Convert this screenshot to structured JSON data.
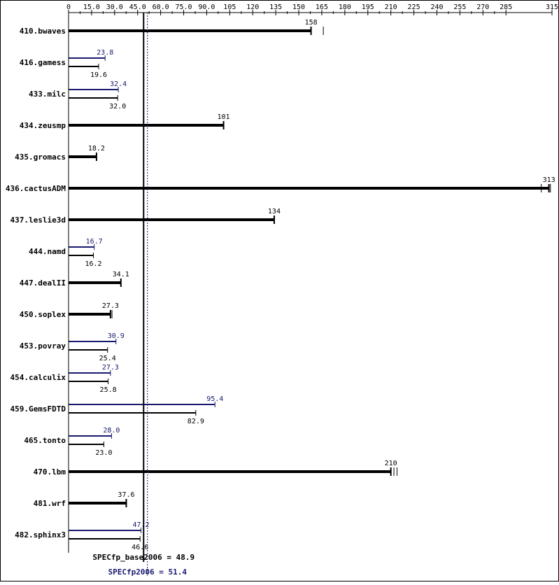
{
  "chart_data": {
    "type": "bar",
    "title": "",
    "xlabel": "",
    "ylabel": "",
    "xlim": [
      0,
      315
    ],
    "x_ticks": [
      "0",
      "15.0",
      "30.0",
      "45.0",
      "60.0",
      "75.0",
      "90.0",
      "105",
      "120",
      "135",
      "150",
      "165",
      "180",
      "195",
      "210",
      "225",
      "240",
      "255",
      "270",
      "285",
      "315"
    ],
    "x_tick_values": [
      0,
      15,
      30,
      45,
      60,
      75,
      90,
      105,
      120,
      135,
      150,
      165,
      180,
      195,
      210,
      225,
      240,
      255,
      270,
      285,
      315
    ],
    "benchmarks": [
      {
        "name": "410.bwaves",
        "base": 158,
        "base_label": "158",
        "peak": null,
        "peak_label": null,
        "runs": [
          158,
          166
        ]
      },
      {
        "name": "416.gamess",
        "base": 19.6,
        "base_label": "19.6",
        "peak": 23.8,
        "peak_label": "23.8",
        "runs": []
      },
      {
        "name": "433.milc",
        "base": 32.0,
        "base_label": "32.0",
        "peak": 32.4,
        "peak_label": "32.4",
        "runs": []
      },
      {
        "name": "434.zeusmp",
        "base": 101,
        "base_label": "101",
        "peak": null,
        "peak_label": null,
        "runs": []
      },
      {
        "name": "435.gromacs",
        "base": 18.2,
        "base_label": "18.2",
        "peak": null,
        "peak_label": null,
        "runs": []
      },
      {
        "name": "436.cactusADM",
        "base": 313,
        "base_label": "313",
        "peak": null,
        "peak_label": null,
        "runs": [
          308,
          314
        ]
      },
      {
        "name": "437.leslie3d",
        "base": 134,
        "base_label": "134",
        "peak": null,
        "peak_label": null,
        "runs": []
      },
      {
        "name": "444.namd",
        "base": 16.2,
        "base_label": "16.2",
        "peak": 16.7,
        "peak_label": "16.7",
        "runs": []
      },
      {
        "name": "447.dealII",
        "base": 34.1,
        "base_label": "34.1",
        "peak": null,
        "peak_label": null,
        "runs": []
      },
      {
        "name": "450.soplex",
        "base": 27.3,
        "base_label": "27.3",
        "peak": null,
        "peak_label": null,
        "runs": [
          28.3
        ]
      },
      {
        "name": "453.povray",
        "base": 25.4,
        "base_label": "25.4",
        "peak": 30.9,
        "peak_label": "30.9",
        "runs": []
      },
      {
        "name": "454.calculix",
        "base": 25.8,
        "base_label": "25.8",
        "peak": 27.3,
        "peak_label": "27.3",
        "runs": []
      },
      {
        "name": "459.GemsFDTD",
        "base": 82.9,
        "base_label": "82.9",
        "peak": 95.4,
        "peak_label": "95.4",
        "runs": []
      },
      {
        "name": "465.tonto",
        "base": 23.0,
        "base_label": "23.0",
        "peak": 28.0,
        "peak_label": "28.0",
        "runs": []
      },
      {
        "name": "470.lbm",
        "base": 210,
        "base_label": "210",
        "peak": null,
        "peak_label": null,
        "runs": [
          212,
          214
        ]
      },
      {
        "name": "481.wrf",
        "base": 37.6,
        "base_label": "37.6",
        "peak": null,
        "peak_label": null,
        "runs": []
      },
      {
        "name": "482.sphinx3",
        "base": 46.6,
        "base_label": "46.6",
        "peak": 47.2,
        "peak_label": "47.2",
        "runs": []
      }
    ],
    "summary": {
      "base_label": "SPECfp_base2006 = 48.9",
      "base_value": 48.9,
      "peak_label": "SPECfp2006 = 51.4",
      "peak_value": 51.4
    },
    "colors": {
      "base": "#000000",
      "peak": "#191970",
      "frame": "#000000"
    }
  }
}
